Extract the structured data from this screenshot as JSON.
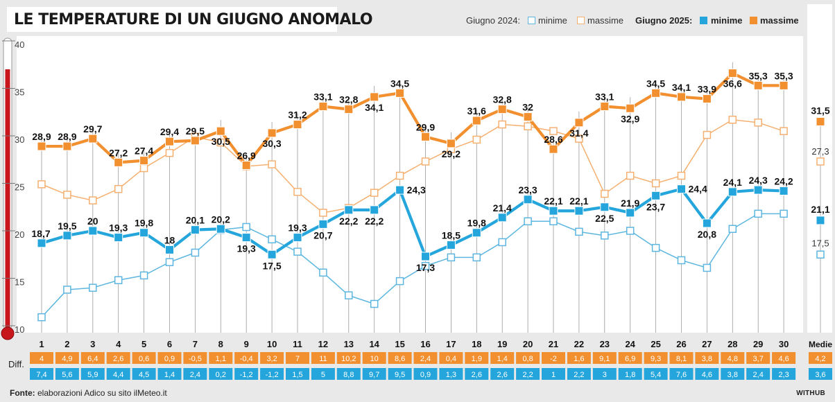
{
  "title": "LE TEMPERATURE DI UN GIUGNO ANOMALO",
  "legend": {
    "group_2024": "Giugno 2024:",
    "group_2025": "Giugno 2025:",
    "min_label": "minime",
    "max_label": "massime"
  },
  "diff_label": "Diff.",
  "footer": {
    "source_label": "Fonte:",
    "source_text": "elaborazioni Adico su sito ilMeteo.it"
  },
  "brand": "WITHUB",
  "colors": {
    "orange": "#f28f2f",
    "blue": "#24a6dc",
    "light_orange": "#f5b070",
    "light_blue": "#5cb6e0",
    "thermo_red": "#c8161d"
  },
  "chart_data": {
    "type": "line",
    "title": "LE TEMPERATURE DI UN GIUGNO ANOMALO",
    "ylim": [
      10,
      40
    ],
    "y_ticks": [
      10,
      15,
      20,
      25,
      30,
      35,
      40
    ],
    "grid": "vertical",
    "x": [
      "1",
      "2",
      "3",
      "4",
      "5",
      "6",
      "7",
      "8",
      "9",
      "10",
      "11",
      "12",
      "13",
      "14",
      "15",
      "16",
      "17",
      "18",
      "19",
      "20",
      "21",
      "22",
      "23",
      "24",
      "25",
      "26",
      "27",
      "28",
      "29",
      "30"
    ],
    "average_label": "Medie",
    "series": [
      {
        "name": "Giugno 2025: massime",
        "values": [
          28.9,
          28.9,
          29.7,
          27.2,
          27.4,
          29.4,
          29.5,
          30.5,
          26.9,
          30.3,
          31.2,
          33.1,
          32.8,
          34.1,
          34.5,
          29.9,
          29.2,
          31.6,
          32.8,
          32,
          28.6,
          31.4,
          33.1,
          32.9,
          34.5,
          34.1,
          33.9,
          36.6,
          35.3,
          35.3
        ],
        "labels": [
          "28,9",
          "28,9",
          "29,7",
          "27,2",
          "27,4",
          "29,4",
          "29,5",
          "30,5",
          "26,9",
          "30,3",
          "31,2",
          "33,1",
          "32,8",
          "34,1",
          "34,5",
          "29,9",
          "29,2",
          "31,6",
          "32,8",
          "32",
          "28,6",
          "31,4",
          "33,1",
          "32,9",
          "34,5",
          "34,1",
          "33,9",
          "36,6",
          "35,3",
          "35,3"
        ],
        "average": 31.5,
        "average_label": "31,5"
      },
      {
        "name": "Giugno 2025: minime",
        "values": [
          18.7,
          19.5,
          20,
          19.3,
          19.8,
          18,
          20.1,
          20.2,
          19.3,
          17.5,
          19.3,
          20.7,
          22.2,
          22.2,
          24.3,
          17.3,
          18.5,
          19.8,
          21.4,
          23.3,
          22.1,
          22.1,
          22.5,
          21.9,
          23.7,
          24.4,
          20.8,
          24.1,
          24.3,
          24.2
        ],
        "labels": [
          "18,7",
          "19,5",
          "20",
          "19,3",
          "19,8",
          "18",
          "20,1",
          "20,2",
          "19,3",
          "17,5",
          "19,3",
          "20,7",
          "22,2",
          "22,2",
          "24,3",
          "17,3",
          "18,5",
          "19,8",
          "21,4",
          "23,3",
          "22,1",
          "22,1",
          "22,5",
          "21,9",
          "23,7",
          "24,4",
          "20,8",
          "24,1",
          "24,3",
          "24,2"
        ],
        "average": 21.1,
        "average_label": "21,1"
      },
      {
        "name": "Giugno 2024: massime",
        "values": [
          24.9,
          23.8,
          23.2,
          24.4,
          26.6,
          28.2,
          29.9,
          29.3,
          26.8,
          27,
          24.1,
          21.9,
          22.4,
          24,
          25.8,
          27.3,
          28.6,
          29.6,
          31.2,
          31,
          30.5,
          29.7,
          23.9,
          25.8,
          25,
          25.8,
          30.1,
          31.7,
          31.4,
          30.5
        ],
        "average": 27.3,
        "average_label": "27,3"
      },
      {
        "name": "Giugno 2024: minime",
        "values": [
          10.9,
          13.8,
          14,
          14.8,
          15.3,
          16.7,
          17.7,
          20.1,
          20.4,
          19.1,
          17.8,
          15.6,
          13.2,
          12.3,
          14.7,
          16.3,
          17.2,
          17.2,
          18.8,
          21,
          21,
          19.9,
          19.5,
          20,
          18.2,
          16.9,
          16.1,
          20.2,
          21.8,
          21.8
        ],
        "average": 17.5,
        "average_label": "17,5"
      }
    ],
    "diff_max": [
      "4",
      "4,9",
      "6,4",
      "2,6",
      "0,6",
      "0,9",
      "-0,5",
      "1,1",
      "-0,4",
      "3,2",
      "7",
      "11",
      "10,2",
      "10",
      "8,6",
      "2,4",
      "0,4",
      "1,9",
      "1,4",
      "0,8",
      "-2",
      "1,6",
      "9,1",
      "6,9",
      "9,3",
      "8,1",
      "3,8",
      "4,8",
      "3,7",
      "4,6"
    ],
    "diff_max_average": "4,2",
    "diff_min": [
      "7,4",
      "5,6",
      "5,9",
      "4,4",
      "4,5",
      "1,4",
      "2,4",
      "0,2",
      "-1,2",
      "-1,2",
      "1,5",
      "5",
      "8,8",
      "9,7",
      "9,5",
      "0,9",
      "1,3",
      "2,6",
      "2,6",
      "2,2",
      "1",
      "2,2",
      "3",
      "1,8",
      "5,4",
      "7,6",
      "4,6",
      "3,8",
      "2,4",
      "2,3"
    ],
    "diff_min_average": "3,6"
  }
}
